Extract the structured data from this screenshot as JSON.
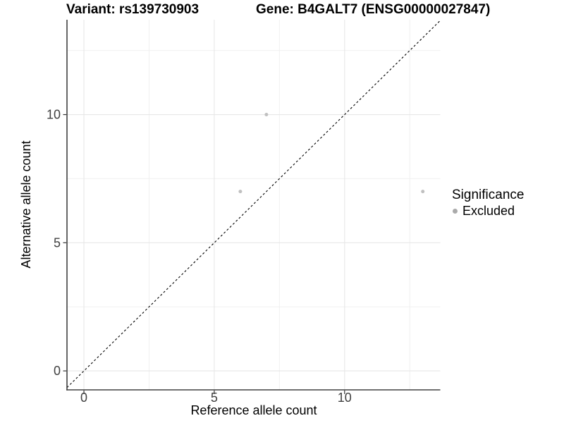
{
  "chart_data": {
    "type": "scatter",
    "title_left": "Variant: rs139730903",
    "title_right": "Gene: B4GALT7 (ENSG00000027847)",
    "xlabel": "Reference allele count",
    "ylabel": "Alternative allele count",
    "xlim": [
      -0.65,
      13.67
    ],
    "ylim": [
      -0.74,
      13.7
    ],
    "x_ticks": [
      0,
      5,
      10
    ],
    "y_ticks": [
      0,
      5,
      10
    ],
    "x_minor_ticks": [
      2.5,
      7.5,
      12.5
    ],
    "y_minor_ticks": [
      2.5,
      7.5,
      12.5
    ],
    "grid": "major+minor",
    "reference_line": {
      "type": "identity y=x",
      "style": "dashed",
      "color": "#000000"
    },
    "series": [
      {
        "name": "Excluded",
        "color": "#c0c0c0",
        "points": [
          [
            6,
            7
          ],
          [
            7,
            10
          ],
          [
            13,
            7
          ]
        ]
      }
    ],
    "legend": {
      "title": "Significance",
      "position": "right",
      "items": [
        {
          "label": "Excluded",
          "symbol": "circle",
          "color": "#aaaaaa"
        }
      ]
    }
  },
  "colors": {
    "background": "#ffffff",
    "grid_major": "#e7e7e7",
    "grid_minor": "#f0f0f0",
    "axis_line": "#404040",
    "tick_mark": "#333333",
    "tick_label": "#404040",
    "title_text": "#000000",
    "dashed_line": "#000000"
  }
}
